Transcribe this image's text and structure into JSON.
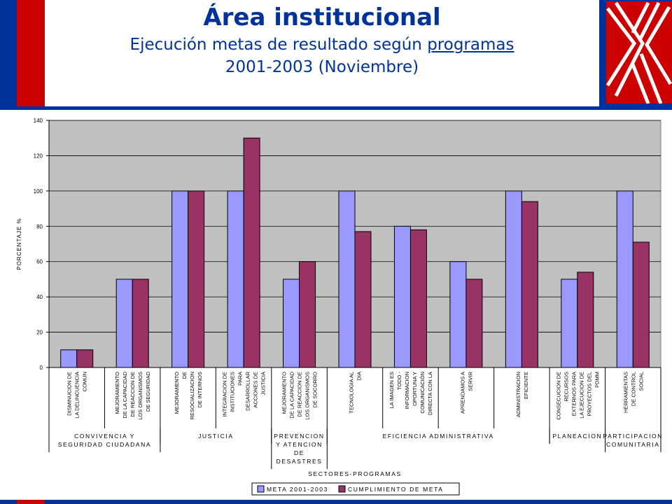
{
  "header": {
    "title": "Área institucional",
    "subtitle_pre": "Ejecución metas de resultado según ",
    "subtitle_link": "programas",
    "subtitle_line2": "2001-2003 (Noviembre)",
    "logo_icon": "x-logo-icon"
  },
  "colors": {
    "brand_blue": "#00339a",
    "brand_red": "#cc0000",
    "plot_bg": "#c0c0c0",
    "meta": "#9999ff",
    "cumplimiento": "#993366"
  },
  "chart_data": {
    "type": "bar",
    "ylabel": "PORCENTAJE %",
    "xlabel": "SECTORES-PROGRAMAS",
    "ylim": [
      0,
      140
    ],
    "yticks": [
      0,
      20,
      40,
      60,
      80,
      100,
      120,
      140
    ],
    "grid": true,
    "legend_position": "bottom",
    "categories": [
      [
        "DISMINUCION DE",
        "LA DELINCUENCIA",
        "COMUN"
      ],
      [
        "MEJORAMIENTO",
        "DE LA CAPACIDAD",
        "DE REACCION DE",
        "LOS ORGANISMOS",
        "DE SEGURIDAD"
      ],
      [
        "MEJORAMIENTO",
        "DE",
        "RESOCIALIZACION",
        "DE INTERNOS"
      ],
      [
        "INTEGRACION DE",
        "INSTITUCIONES",
        "PARA",
        "DESARROLLAR",
        "ACCIONES DE",
        "JUSTICIA"
      ],
      [
        "MEJORAMIENTO",
        "DE LA CAPACIDAD",
        "DE REACCION DE",
        "LOS ORGANISMOS",
        "DE SOCORRO"
      ],
      [
        "TECNOLOGIA AL",
        "DIA"
      ],
      [
        "LA IMAGEN ES",
        "TODO -",
        "INFORMACION",
        "OPORTUNA Y",
        "COMUNICACIÓN",
        "DIRECTA CON LA"
      ],
      [
        "APRENDAMOS A",
        "SERVIR"
      ],
      [
        "ADMINISTRACION",
        "EFICIENTE"
      ],
      [
        "CONSECUCION DE",
        "RECURSOS",
        "EXTERNOS PARA",
        "LA EJECUCION DE",
        "PROYECTOS DEL",
        "PDMM"
      ],
      [
        "HERRAMIENTAS",
        "DE CONTROL",
        "SOCIAL"
      ]
    ],
    "sectors": [
      {
        "lines": [
          "CONVIVENCIA Y",
          "SEGURIDAD CIUDADANA"
        ],
        "count": 2
      },
      {
        "lines": [
          "JUSTICIA"
        ],
        "count": 2
      },
      {
        "lines": [
          "PREVENCION",
          "Y ATENCION",
          "DE",
          "DESASTRES"
        ],
        "count": 1
      },
      {
        "lines": [
          "EFICIENCIA ADMINISTRATIVA"
        ],
        "count": 4
      },
      {
        "lines": [
          "PLANEACION"
        ],
        "count": 1
      },
      {
        "lines": [
          "PARTICIPACION",
          "COMUNITARIA"
        ],
        "count": 1
      }
    ],
    "series": [
      {
        "name": "META 2001-2003",
        "values": [
          10,
          50,
          100,
          100,
          50,
          100,
          80,
          60,
          100,
          50,
          100
        ]
      },
      {
        "name": "CUMPLIMIENTO DE META",
        "values": [
          10,
          50,
          100,
          130,
          60,
          77,
          78,
          50,
          94,
          54,
          71
        ]
      }
    ]
  }
}
